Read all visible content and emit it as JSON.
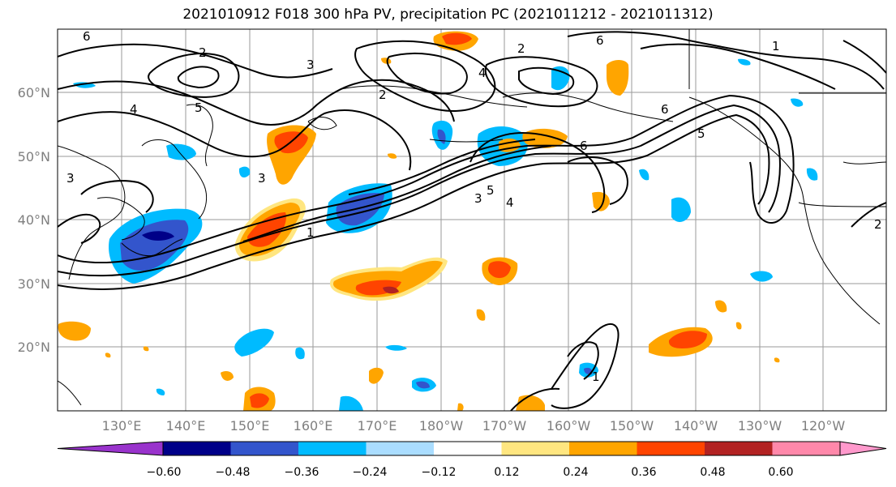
{
  "title": "2021010912 F018 300 hPa PV, precipitation PC (2021011212 - 2021011312)",
  "map": {
    "lat_labels": [
      "60°N",
      "50°N",
      "40°N",
      "30°N",
      "20°N"
    ],
    "lon_labels": [
      "130°E",
      "140°E",
      "150°E",
      "160°E",
      "170°E",
      "180°W",
      "170°W",
      "160°W",
      "150°W",
      "140°W",
      "130°W",
      "120°W"
    ],
    "pv_contour_labels": [
      "1",
      "2",
      "3",
      "4",
      "5",
      "6"
    ]
  },
  "colorbar": {
    "tick_labels": [
      "−0.60",
      "−0.48",
      "−0.36",
      "−0.24",
      "−0.12",
      "0.12",
      "0.24",
      "0.36",
      "0.48",
      "0.60"
    ],
    "colors": [
      "#9933cc",
      "#000088",
      "#3355cc",
      "#00bbff",
      "#aaddff",
      "#ffffff",
      "#ffe680",
      "#ffa500",
      "#ff4400",
      "#b22222",
      "#ff88aa",
      "#ff99cc"
    ],
    "colors_note": "extend-both"
  }
}
